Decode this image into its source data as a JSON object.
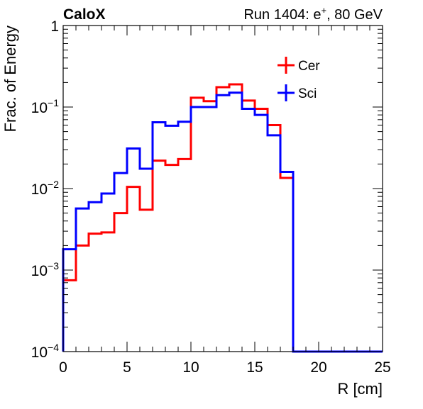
{
  "chart_data": {
    "type": "histogram",
    "title_left": "CaloX",
    "title_right_prefix": "Run 1404: e",
    "title_right_sup": "+",
    "title_right_suffix": ", 80 GeV",
    "xlabel": "R [cm]",
    "ylabel": "Frac. of Energy",
    "xlim": [
      0,
      25
    ],
    "ylim": [
      0.0001,
      1
    ],
    "yscale": "log",
    "grid": false,
    "legend_position": "top-right",
    "x_ticks": [
      {
        "value": 0,
        "label": "0"
      },
      {
        "value": 5,
        "label": "5"
      },
      {
        "value": 10,
        "label": "10"
      },
      {
        "value": 15,
        "label": "15"
      },
      {
        "value": 20,
        "label": "20"
      },
      {
        "value": 25,
        "label": "25"
      }
    ],
    "y_ticks": [
      {
        "value": 0.0001,
        "base": "10",
        "exp": "−4"
      },
      {
        "value": 0.001,
        "base": "10",
        "exp": "−3"
      },
      {
        "value": 0.01,
        "base": "10",
        "exp": "−2"
      },
      {
        "value": 0.1,
        "base": "10",
        "exp": "−1"
      },
      {
        "value": 1,
        "base": "1",
        "exp": ""
      }
    ],
    "bin_edges": [
      0,
      1,
      2,
      3,
      4,
      5,
      6,
      7,
      8,
      9,
      10,
      11,
      12,
      13,
      14,
      15,
      16,
      17,
      18,
      19,
      20,
      21,
      22,
      23,
      24,
      25
    ],
    "series": [
      {
        "name": "Cer",
        "color": "#ff0000",
        "values": [
          0.00075,
          0.002,
          0.0028,
          0.0029,
          0.005,
          0.0105,
          0.0055,
          0.022,
          0.0195,
          0.023,
          0.13,
          0.118,
          0.175,
          0.19,
          0.12,
          0.095,
          0.06,
          0.0135,
          0.0,
          0.0,
          0.0,
          0.0,
          0.0,
          0.0,
          0.0
        ]
      },
      {
        "name": "Sci",
        "color": "#0000ff",
        "values": [
          0.0018,
          0.0057,
          0.0068,
          0.0087,
          0.0155,
          0.031,
          0.0175,
          0.065,
          0.059,
          0.066,
          0.1,
          0.1,
          0.14,
          0.15,
          0.095,
          0.08,
          0.045,
          0.016,
          0.0,
          0.0,
          0.0,
          0.0,
          0.0,
          0.0,
          0.0
        ]
      }
    ]
  }
}
